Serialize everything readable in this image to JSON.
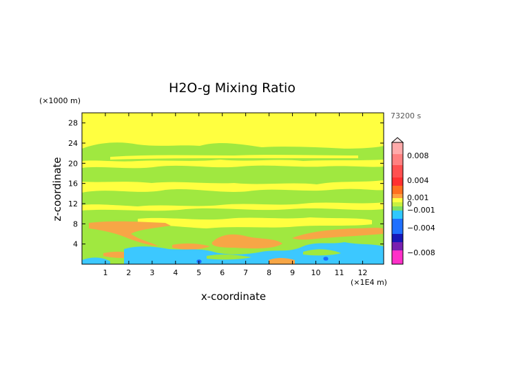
{
  "chart_data": {
    "type": "heatmap",
    "title": "H2O-g Mixing Ratio",
    "xlabel": "x-coordinate",
    "ylabel": "z-coordinate",
    "x_unit": "(×1E4 m)",
    "y_unit": "(×1000 m)",
    "time_label": "73200 s",
    "xlim": [
      0,
      12.9
    ],
    "ylim": [
      0,
      30
    ],
    "x_ticks": [
      1,
      2,
      3,
      4,
      5,
      6,
      7,
      8,
      9,
      10,
      11,
      12
    ],
    "y_ticks": [
      4,
      8,
      12,
      16,
      20,
      24,
      28
    ],
    "colorbar": {
      "tick_labels": [
        "0.008",
        "0.004",
        "0.001",
        "0",
        "−0.001",
        "−0.004",
        "−0.008"
      ],
      "levels": [
        0.008,
        0.004,
        0.001,
        0,
        -0.001,
        -0.004,
        -0.008
      ],
      "colors": {
        "high_pink": "#ff9999",
        "red": "#ff4040",
        "orange": "#ff8c28",
        "light_orange": "#f7a646",
        "yellow": "#ffff40",
        "green": "#a0e840",
        "light_green": "#7ddc5a",
        "cyan": "#3cc8ff",
        "blue": "#1b6bff",
        "dark_blue": "#1010b0",
        "purple": "#7b1fb0",
        "magenta": "#ff20c0"
      }
    },
    "fields": [
      {
        "name": "background",
        "value_range": [
          0.0003,
          0.0008
        ],
        "color": "yellow"
      },
      {
        "name": "green_band_upper",
        "z_range": [
          20,
          24
        ],
        "color": "green"
      },
      {
        "name": "green_band_mid",
        "z_range": [
          13,
          19
        ],
        "color": "green"
      },
      {
        "name": "green_band_low",
        "z_range": [
          4,
          12
        ],
        "color": "green"
      },
      {
        "name": "orange_layer",
        "z_range": [
          7,
          9
        ],
        "x_range": [
          0.3,
          3.8
        ],
        "color": "light_orange"
      },
      {
        "name": "orange_blob",
        "z_range": [
          3,
          6
        ],
        "x_range": [
          5.3,
          7.8
        ],
        "color": "light_orange"
      },
      {
        "name": "cyan_low",
        "z_range": [
          0,
          3
        ],
        "x_range": [
          0.5,
          12.5
        ],
        "color": "cyan"
      }
    ]
  }
}
